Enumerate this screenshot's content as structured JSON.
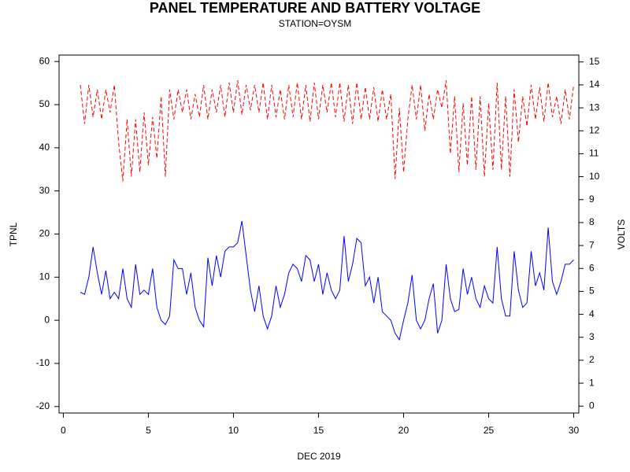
{
  "chart_data": {
    "type": "line",
    "title": "PANEL TEMPERATURE AND BATTERY VOLTAGE",
    "subtitle": "STATION=OYSM",
    "xlabel": "DEC 2019",
    "ylabel": "TPNL",
    "y2label": "VOLTS",
    "x": [
      1,
      1.25,
      1.5,
      1.75,
      2,
      2.25,
      2.5,
      2.75,
      3,
      3.25,
      3.5,
      3.75,
      4,
      4.25,
      4.5,
      4.75,
      5,
      5.25,
      5.5,
      5.75,
      6,
      6.25,
      6.5,
      6.75,
      7,
      7.25,
      7.5,
      7.75,
      8,
      8.25,
      8.5,
      8.75,
      9,
      9.25,
      9.5,
      9.75,
      10,
      10.25,
      10.5,
      10.75,
      11,
      11.25,
      11.5,
      11.75,
      12,
      12.25,
      12.5,
      12.75,
      13,
      13.25,
      13.5,
      13.75,
      14,
      14.25,
      14.5,
      14.75,
      15,
      15.25,
      15.5,
      15.75,
      16,
      16.25,
      16.5,
      16.75,
      17,
      17.25,
      17.5,
      17.75,
      18,
      18.25,
      18.5,
      18.75,
      19,
      19.25,
      19.5,
      19.75,
      20,
      20.25,
      20.5,
      20.75,
      21,
      21.25,
      21.5,
      21.75,
      22,
      22.25,
      22.5,
      22.75,
      23,
      23.25,
      23.5,
      23.75,
      24,
      24.25,
      24.5,
      24.75,
      25,
      25.25,
      25.5,
      25.75,
      26,
      26.25,
      26.5,
      26.75,
      27,
      27.25,
      27.5,
      27.75,
      28,
      28.25,
      28.5,
      28.75,
      29,
      29.25,
      29.5,
      29.75,
      30
    ],
    "series": [
      {
        "name": "TPNL",
        "color": "#0000ff",
        "dashed": false,
        "values": [
          6.5,
          6,
          10,
          17,
          11,
          6,
          11.5,
          5,
          6.5,
          5,
          12,
          5,
          3,
          13,
          6,
          7,
          6,
          12,
          3,
          0,
          -1,
          1,
          14,
          12,
          12,
          6,
          11,
          3,
          0,
          -1.5,
          14.5,
          8,
          15,
          10,
          16,
          17,
          17,
          18,
          23,
          15,
          7,
          2,
          8,
          1,
          -2,
          1,
          8,
          3,
          6,
          11,
          13,
          12,
          9,
          15,
          14,
          9,
          13,
          6,
          11,
          7,
          5,
          7,
          19.5,
          9,
          13,
          19,
          18,
          8,
          10,
          4,
          10,
          2,
          1,
          0,
          -3,
          -4.5,
          0,
          4,
          10.5,
          0,
          -2,
          0,
          5,
          8.5,
          -3,
          0,
          13,
          5,
          2,
          2.5,
          12,
          6,
          10,
          5,
          3,
          8,
          5,
          4,
          17,
          5,
          1,
          1,
          16,
          7,
          3,
          4,
          16,
          8,
          11,
          7,
          21.5,
          9,
          6,
          9,
          13,
          13,
          14
        ]
      },
      {
        "name": "VOLTS",
        "color": "#ff0000",
        "dashed": true,
        "axis": "y2",
        "values": [
          14,
          12.3,
          14,
          12.6,
          13.8,
          12.5,
          13.8,
          12.8,
          14,
          11.5,
          9.8,
          12.5,
          10,
          12.5,
          10.2,
          12.8,
          10.5,
          12.6,
          10.8,
          13.5,
          10,
          13.8,
          12.5,
          13.8,
          12.8,
          13.8,
          12.5,
          13.6,
          12.6,
          14,
          12.5,
          13.8,
          12.8,
          14,
          12.6,
          14.1,
          12.8,
          14.2,
          12.7,
          14,
          12.9,
          14,
          12.8,
          14.1,
          12.5,
          14,
          12.6,
          13.8,
          12.5,
          14,
          12.6,
          14.1,
          12.5,
          14,
          12.4,
          14.1,
          12.5,
          14,
          12.8,
          14.1,
          12.6,
          14.1,
          12.4,
          14,
          12.3,
          14.1,
          12.5,
          13.9,
          12.5,
          13.9,
          12.4,
          13.8,
          12.5,
          13.6,
          9.9,
          13,
          10.2,
          12.5,
          14,
          12.5,
          14,
          12,
          13.6,
          12.5,
          13.8,
          13,
          14.2,
          11,
          13.5,
          10.2,
          13.2,
          10.5,
          13.5,
          10.3,
          13.5,
          10,
          13.2,
          10.3,
          14.1,
          10.3,
          13.5,
          10,
          13.8,
          11.5,
          13.5,
          12.2,
          14,
          12.5,
          13.9,
          12.4,
          14.1,
          12.6,
          13.5,
          12.3,
          13.8,
          12.5,
          14
        ]
      }
    ],
    "xlim": [
      -0.25,
      30.3
    ],
    "xticks": [
      0,
      5,
      10,
      15,
      20,
      25,
      30
    ],
    "ylim": [
      -21.5,
      61.5
    ],
    "yticks": [
      -20,
      -10,
      0,
      10,
      20,
      30,
      40,
      50,
      60
    ],
    "y2lim": [
      -0.3,
      15.3
    ],
    "y2ticks": [
      0,
      1,
      2,
      3,
      4,
      5,
      6,
      7,
      8,
      9,
      10,
      11,
      12,
      13,
      14,
      15
    ]
  }
}
